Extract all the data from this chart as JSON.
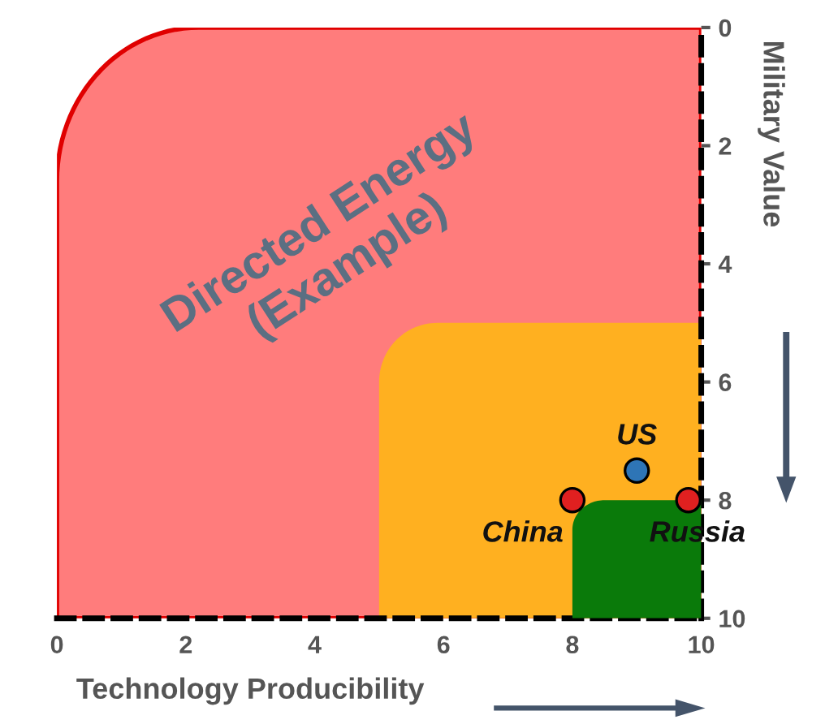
{
  "chart_data": {
    "type": "scatter",
    "xlabel": "Technology Producibility",
    "ylabel": "Military Value",
    "annotations": [
      "Directed Energy\n(Example)"
    ],
    "xlim": [
      0,
      10
    ],
    "xticks": [
      0,
      2,
      4,
      6,
      8,
      10
    ],
    "ylim": [
      10,
      0
    ],
    "yticks": [
      0,
      2,
      4,
      6,
      8,
      10
    ],
    "marker": "circle",
    "legend": false,
    "grid": false,
    "series": [
      {
        "name": "US",
        "color": "#2e75b6",
        "x": [
          9
        ],
        "values": [
          7.5
        ]
      },
      {
        "name": "China",
        "color": "#e02020",
        "x": [
          8
        ],
        "values": [
          8
        ]
      },
      {
        "name": "Russia",
        "color": "#e02020",
        "x": [
          9.8
        ],
        "values": [
          8
        ]
      }
    ]
  }
}
